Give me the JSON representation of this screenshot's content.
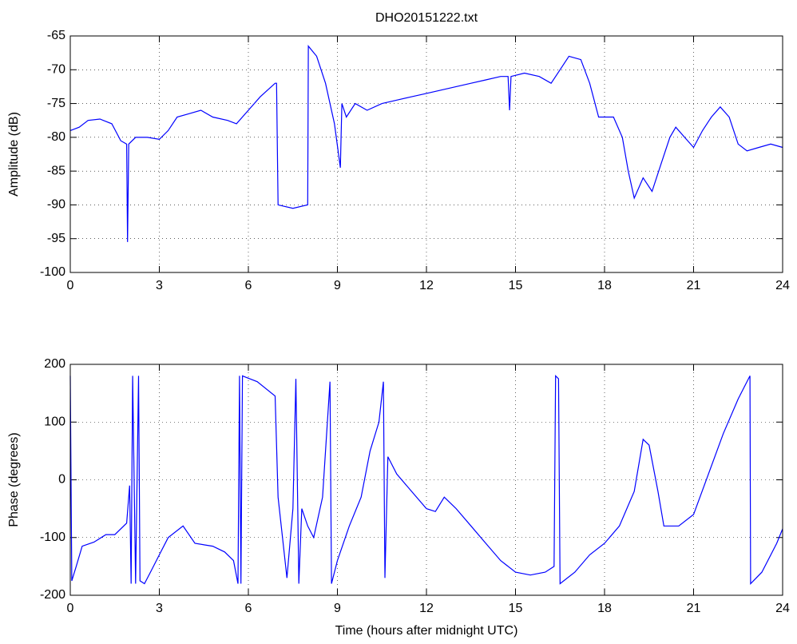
{
  "chart_data": [
    {
      "type": "line",
      "title": "DHO20151222.txt",
      "ylabel": "Amplitude (dB)",
      "color": "#0000ff",
      "grid": true,
      "xlim": [
        0,
        24
      ],
      "xticks": [
        0,
        3,
        6,
        9,
        12,
        15,
        18,
        21,
        24
      ],
      "ylim": [
        -100,
        -65
      ],
      "yticks": [
        -100,
        -95,
        -90,
        -85,
        -80,
        -75,
        -70,
        -65
      ],
      "x": [
        0,
        0.3,
        0.6,
        1,
        1.4,
        1.7,
        1.9,
        1.93,
        1.97,
        2.2,
        2.6,
        3,
        3.3,
        3.6,
        4,
        4.4,
        4.8,
        5.3,
        5.6,
        6,
        6.4,
        6.9,
        6.95,
        7.0,
        7.5,
        8.0,
        8.02,
        8.3,
        8.6,
        8.9,
        9.1,
        9.15,
        9.3,
        9.6,
        10,
        10.5,
        11,
        11.5,
        12,
        12.5,
        13,
        13.5,
        14,
        14.5,
        14.75,
        14.8,
        14.85,
        15.3,
        15.8,
        16.2,
        16.5,
        16.8,
        17.2,
        17.5,
        17.8,
        18,
        18.3,
        18.6,
        18.8,
        19,
        19.3,
        19.6,
        19.9,
        20.2,
        20.4,
        20.7,
        21,
        21.3,
        21.6,
        21.9,
        22.2,
        22.5,
        22.8,
        23.2,
        23.6,
        24
      ],
      "values": [
        -79,
        -78.5,
        -77.5,
        -77.3,
        -78,
        -80.5,
        -81,
        -95.5,
        -81,
        -80,
        -80,
        -80.3,
        -79,
        -77,
        -76.5,
        -76,
        -77,
        -77.5,
        -78,
        -76,
        -74,
        -72,
        -72,
        -90,
        -90.5,
        -90,
        -66.5,
        -68,
        -72,
        -78,
        -84.5,
        -75,
        -77,
        -75,
        -76,
        -75,
        -74.5,
        -74,
        -73.5,
        -73,
        -72.5,
        -72,
        -71.5,
        -71,
        -71,
        -76,
        -71,
        -70.5,
        -71,
        -72,
        -70,
        -68,
        -68.5,
        -72,
        -77,
        -77,
        -77,
        -80,
        -85,
        -89,
        -86,
        -88,
        -84,
        -80,
        -78.5,
        -80,
        -81.5,
        -79,
        -77,
        -75.5,
        -77,
        -81,
        -82,
        -81.5,
        -81,
        -81.5
      ]
    },
    {
      "type": "line",
      "ylabel": "Phase (degrees)",
      "xlabel": "Time (hours after midnight UTC)",
      "color": "#0000ff",
      "grid": true,
      "xlim": [
        0,
        24
      ],
      "xticks": [
        0,
        3,
        6,
        9,
        12,
        15,
        18,
        21,
        24
      ],
      "ylim": [
        -200,
        200
      ],
      "yticks": [
        -200,
        -100,
        0,
        100,
        200
      ],
      "x": [
        0,
        0.05,
        0.2,
        0.4,
        0.8,
        1.2,
        1.5,
        1.9,
        2.0,
        2.05,
        2.1,
        2.2,
        2.3,
        2.35,
        2.5,
        2.7,
        3,
        3.3,
        3.8,
        4.2,
        4.8,
        5.2,
        5.5,
        5.65,
        5.7,
        5.75,
        5.8,
        5.9,
        6.3,
        6.9,
        7.0,
        7.3,
        7.5,
        7.6,
        7.7,
        7.8,
        8.0,
        8.2,
        8.5,
        8.75,
        8.8,
        9.0,
        9.4,
        9.8,
        10.1,
        10.4,
        10.55,
        10.6,
        10.7,
        11,
        11.5,
        12,
        12.3,
        12.6,
        13,
        13.5,
        14,
        14.5,
        15,
        15.5,
        16,
        16.3,
        16.35,
        16.45,
        16.5,
        17,
        17.5,
        18,
        18.5,
        19,
        19.3,
        19.5,
        19.8,
        20,
        20.5,
        21,
        21.5,
        22,
        22.5,
        22.9,
        22.92,
        23.3,
        23.8,
        24
      ],
      "values": [
        180,
        -175,
        -150,
        -115,
        -108,
        -95,
        -95,
        -75,
        -10,
        -180,
        180,
        -180,
        180,
        -175,
        -180,
        -160,
        -130,
        -100,
        -80,
        -110,
        -115,
        -125,
        -140,
        -180,
        180,
        -180,
        180,
        178,
        170,
        145,
        -30,
        -170,
        -50,
        175,
        -180,
        -50,
        -80,
        -100,
        -30,
        170,
        -180,
        -140,
        -80,
        -30,
        50,
        100,
        170,
        -170,
        40,
        10,
        -20,
        -50,
        -55,
        -30,
        -50,
        -80,
        -110,
        -140,
        -160,
        -165,
        -160,
        -150,
        180,
        175,
        -180,
        -160,
        -130,
        -110,
        -80,
        -20,
        70,
        60,
        -20,
        -80,
        -80,
        -60,
        10,
        80,
        140,
        180,
        -180,
        -160,
        -110,
        -85
      ]
    }
  ]
}
